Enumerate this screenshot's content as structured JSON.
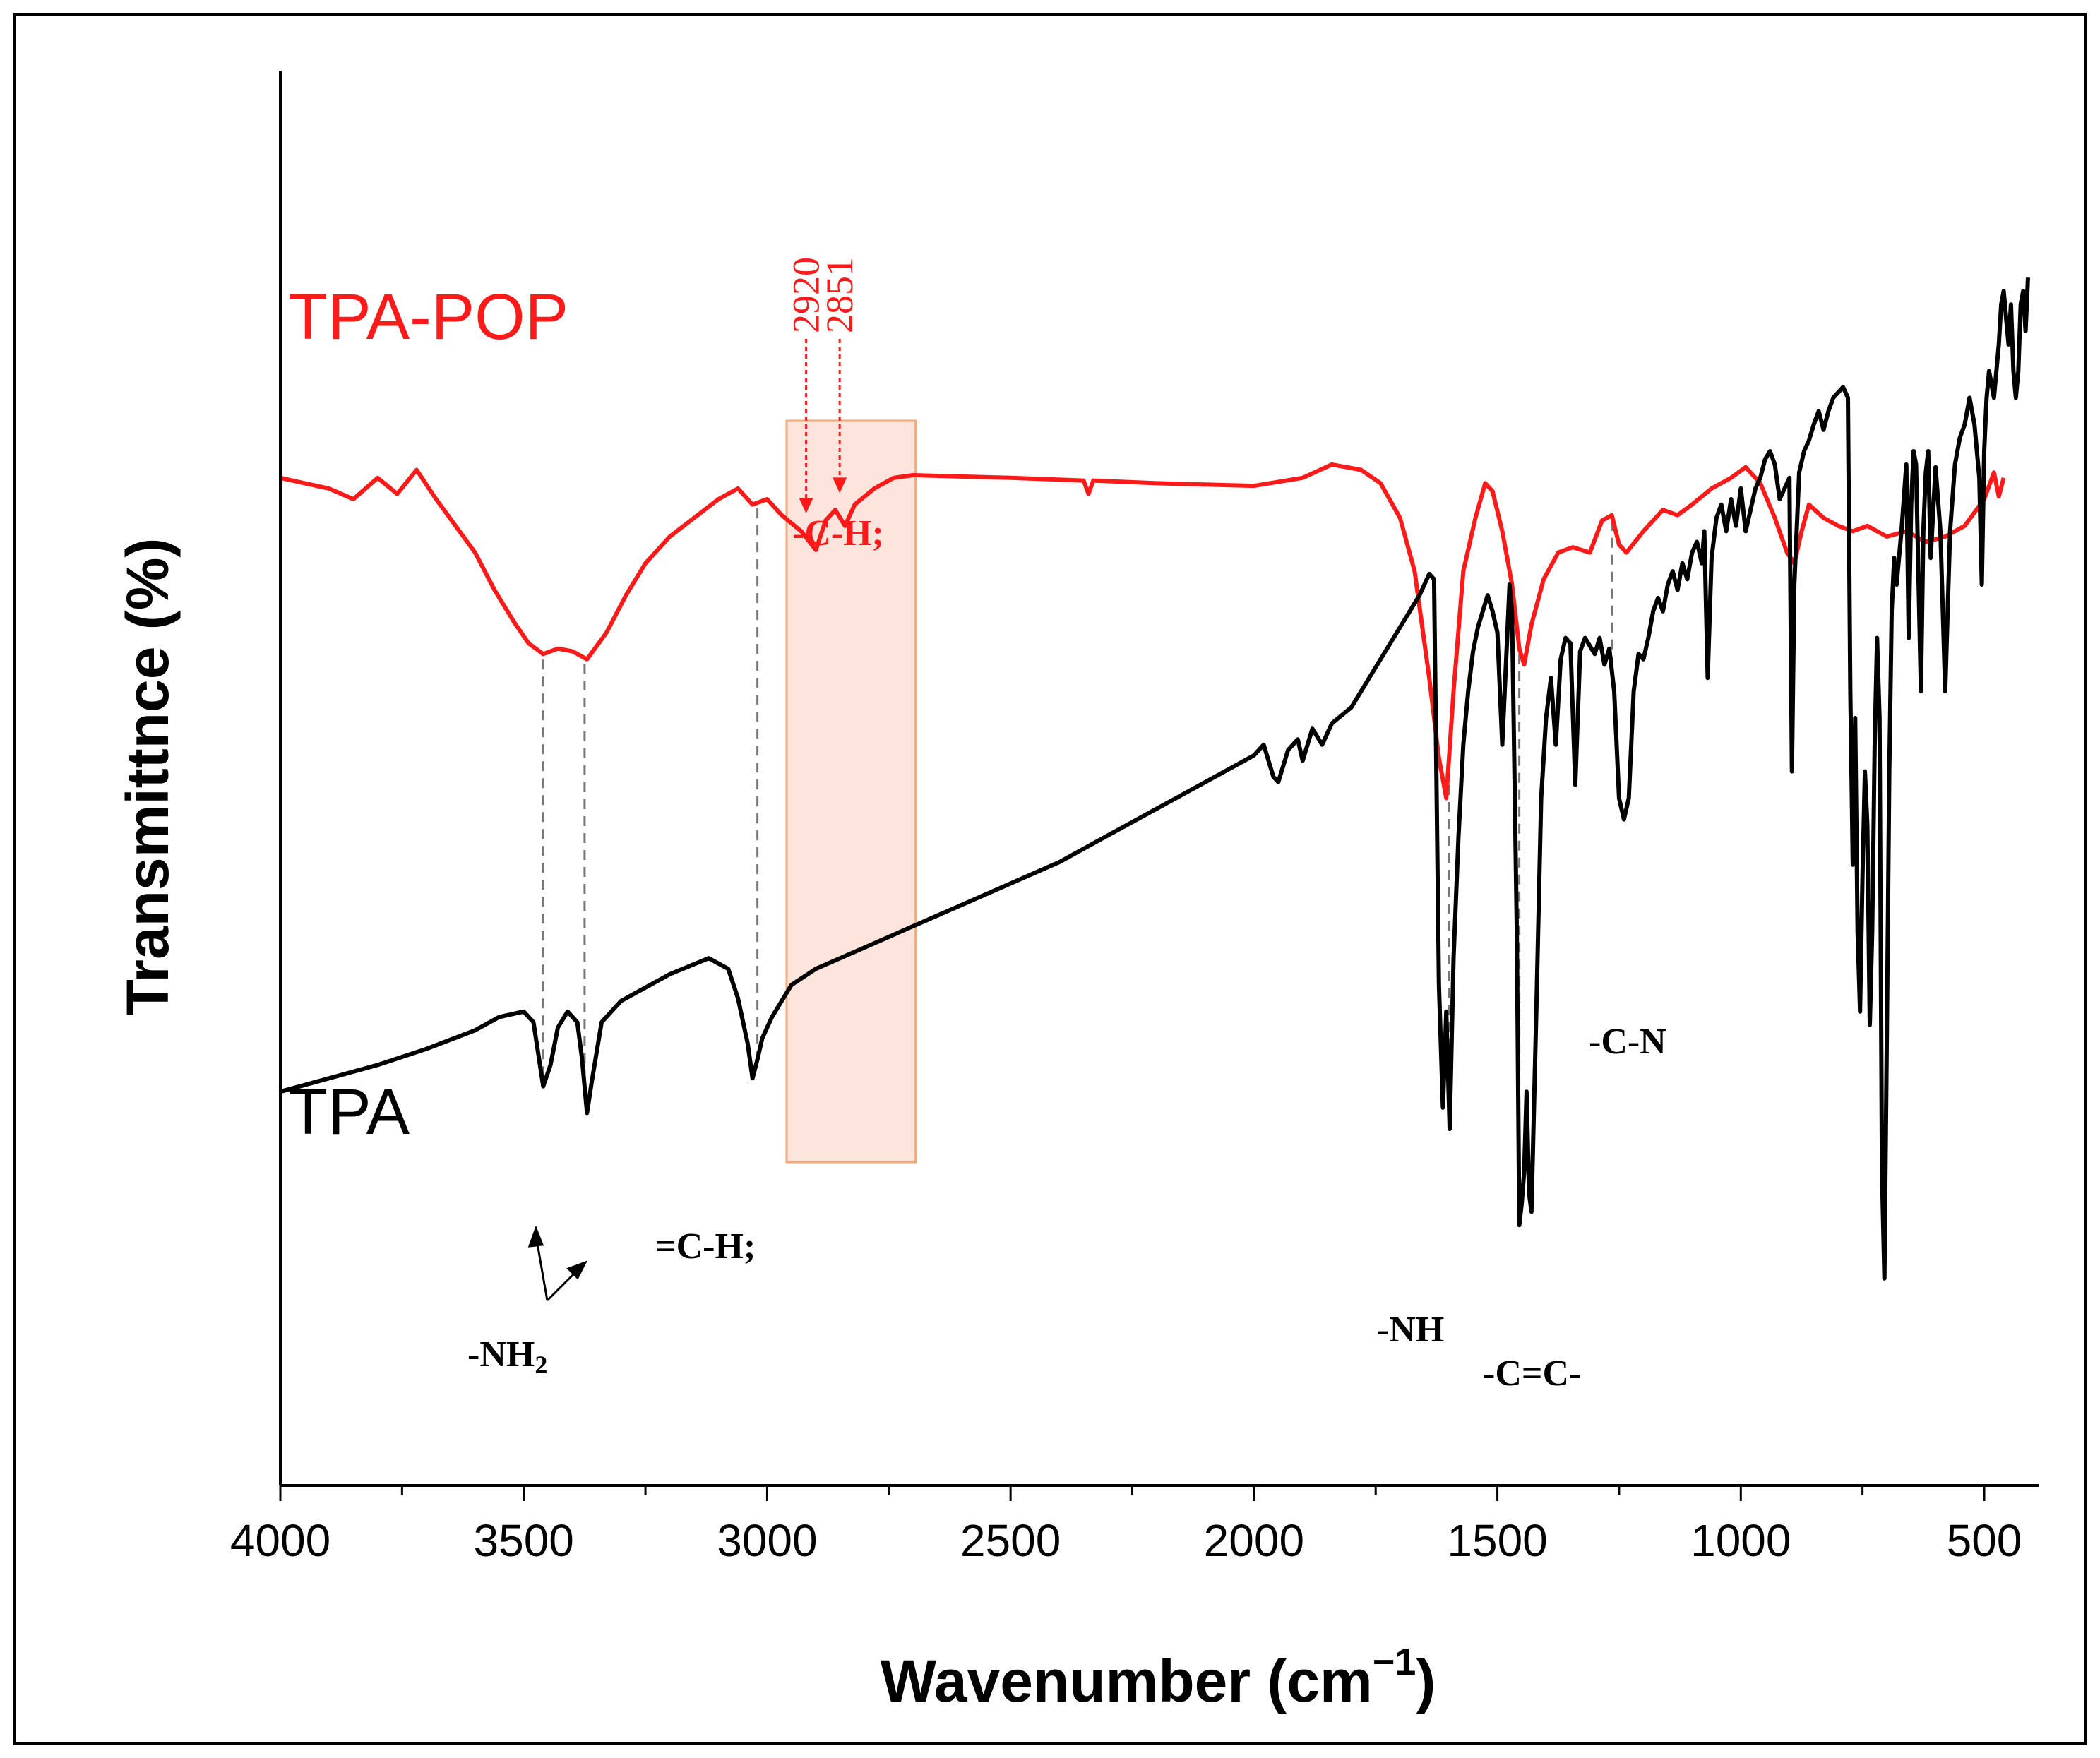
{
  "chart_data": {
    "type": "line",
    "title": "",
    "xlabel": "Wavenumber (cm",
    "xlabel_sup": "−1",
    "xlabel_close": ")",
    "ylabel": "Transmittnce (%)",
    "xlim": [
      4000,
      400
    ],
    "x_reversed": true,
    "y_ticks_shown": false,
    "xticks": [
      4000,
      3500,
      3000,
      2500,
      2000,
      1500,
      1000,
      500
    ],
    "colors": {
      "tpa_pop": "#ff1a1a",
      "tpa": "#000000",
      "highlight_fill": "#fde4dc",
      "highlight_stroke": "#f4a877",
      "guide": "#777777"
    },
    "series": [
      {
        "name": "TPA-POP",
        "label": "TPA-POP",
        "color": "#ff1a1a",
        "points": [
          [
            4000,
            2.9
          ],
          [
            3950,
            2.88
          ],
          [
            3900,
            2.86
          ],
          [
            3850,
            2.82
          ],
          [
            3800,
            2.9
          ],
          [
            3760,
            2.84
          ],
          [
            3720,
            2.93
          ],
          [
            3680,
            2.82
          ],
          [
            3640,
            2.72
          ],
          [
            3600,
            2.62
          ],
          [
            3560,
            2.48
          ],
          [
            3520,
            2.36
          ],
          [
            3490,
            2.28
          ],
          [
            3460,
            2.24
          ],
          [
            3430,
            2.26
          ],
          [
            3400,
            2.25
          ],
          [
            3370,
            2.22
          ],
          [
            3330,
            2.32
          ],
          [
            3290,
            2.46
          ],
          [
            3250,
            2.58
          ],
          [
            3200,
            2.68
          ],
          [
            3150,
            2.75
          ],
          [
            3100,
            2.82
          ],
          [
            3060,
            2.86
          ],
          [
            3030,
            2.8
          ],
          [
            3000,
            2.82
          ],
          [
            2970,
            2.76
          ],
          [
            2930,
            2.7
          ],
          [
            2900,
            2.63
          ],
          [
            2880,
            2.74
          ],
          [
            2860,
            2.78
          ],
          [
            2840,
            2.72
          ],
          [
            2820,
            2.8
          ],
          [
            2780,
            2.86
          ],
          [
            2740,
            2.9
          ],
          [
            2700,
            2.91
          ],
          [
            2500,
            2.9
          ],
          [
            2350,
            2.89
          ],
          [
            2340,
            2.84
          ],
          [
            2330,
            2.89
          ],
          [
            2200,
            2.88
          ],
          [
            2000,
            2.87
          ],
          [
            1900,
            2.9
          ],
          [
            1840,
            2.95
          ],
          [
            1780,
            2.93
          ],
          [
            1740,
            2.88
          ],
          [
            1700,
            2.75
          ],
          [
            1670,
            2.55
          ],
          [
            1640,
            2.15
          ],
          [
            1620,
            1.85
          ],
          [
            1605,
            1.7
          ],
          [
            1590,
            2.1
          ],
          [
            1570,
            2.55
          ],
          [
            1545,
            2.75
          ],
          [
            1525,
            2.88
          ],
          [
            1510,
            2.85
          ],
          [
            1490,
            2.7
          ],
          [
            1470,
            2.5
          ],
          [
            1455,
            2.26
          ],
          [
            1445,
            2.2
          ],
          [
            1430,
            2.35
          ],
          [
            1405,
            2.52
          ],
          [
            1375,
            2.62
          ],
          [
            1345,
            2.64
          ],
          [
            1310,
            2.62
          ],
          [
            1285,
            2.74
          ],
          [
            1265,
            2.76
          ],
          [
            1250,
            2.65
          ],
          [
            1235,
            2.62
          ],
          [
            1200,
            2.7
          ],
          [
            1160,
            2.78
          ],
          [
            1130,
            2.76
          ],
          [
            1100,
            2.8
          ],
          [
            1060,
            2.86
          ],
          [
            1020,
            2.9
          ],
          [
            990,
            2.94
          ],
          [
            960,
            2.88
          ],
          [
            930,
            2.75
          ],
          [
            905,
            2.62
          ],
          [
            890,
            2.58
          ],
          [
            875,
            2.7
          ],
          [
            860,
            2.8
          ],
          [
            830,
            2.75
          ],
          [
            800,
            2.72
          ],
          [
            770,
            2.7
          ],
          [
            740,
            2.72
          ],
          [
            700,
            2.68
          ],
          [
            660,
            2.7
          ],
          [
            620,
            2.66
          ],
          [
            580,
            2.68
          ],
          [
            540,
            2.72
          ],
          [
            500,
            2.82
          ],
          [
            480,
            2.92
          ],
          [
            470,
            2.83
          ],
          [
            460,
            2.9
          ]
        ]
      },
      {
        "name": "TPA",
        "label": "TPA",
        "color": "#000000",
        "points": [
          [
            4000,
            0.6
          ],
          [
            3900,
            0.65
          ],
          [
            3800,
            0.7
          ],
          [
            3700,
            0.76
          ],
          [
            3600,
            0.83
          ],
          [
            3550,
            0.88
          ],
          [
            3500,
            0.9
          ],
          [
            3480,
            0.86
          ],
          [
            3460,
            0.62
          ],
          [
            3445,
            0.7
          ],
          [
            3430,
            0.84
          ],
          [
            3410,
            0.9
          ],
          [
            3390,
            0.86
          ],
          [
            3380,
            0.72
          ],
          [
            3370,
            0.52
          ],
          [
            3360,
            0.64
          ],
          [
            3340,
            0.86
          ],
          [
            3300,
            0.94
          ],
          [
            3200,
            1.04
          ],
          [
            3120,
            1.1
          ],
          [
            3080,
            1.06
          ],
          [
            3060,
            0.95
          ],
          [
            3040,
            0.78
          ],
          [
            3030,
            0.65
          ],
          [
            3020,
            0.72
          ],
          [
            3010,
            0.8
          ],
          [
            2990,
            0.88
          ],
          [
            2950,
            1.0
          ],
          [
            2900,
            1.06
          ],
          [
            2800,
            1.14
          ],
          [
            2700,
            1.22
          ],
          [
            2600,
            1.3
          ],
          [
            2500,
            1.38
          ],
          [
            2400,
            1.46
          ],
          [
            2300,
            1.56
          ],
          [
            2200,
            1.66
          ],
          [
            2100,
            1.76
          ],
          [
            2000,
            1.86
          ],
          [
            1980,
            1.9
          ],
          [
            1960,
            1.78
          ],
          [
            1950,
            1.76
          ],
          [
            1930,
            1.88
          ],
          [
            1910,
            1.92
          ],
          [
            1900,
            1.84
          ],
          [
            1880,
            1.96
          ],
          [
            1860,
            1.9
          ],
          [
            1840,
            1.98
          ],
          [
            1800,
            2.04
          ],
          [
            1760,
            2.16
          ],
          [
            1720,
            2.28
          ],
          [
            1680,
            2.4
          ],
          [
            1660,
            2.46
          ],
          [
            1640,
            2.54
          ],
          [
            1630,
            2.52
          ],
          [
            1620,
            1.0
          ],
          [
            1612,
            0.54
          ],
          [
            1605,
            0.9
          ],
          [
            1598,
            0.46
          ],
          [
            1590,
            1.1
          ],
          [
            1580,
            1.55
          ],
          [
            1570,
            1.9
          ],
          [
            1560,
            2.1
          ],
          [
            1550,
            2.25
          ],
          [
            1540,
            2.34
          ],
          [
            1530,
            2.4
          ],
          [
            1520,
            2.46
          ],
          [
            1510,
            2.4
          ],
          [
            1500,
            2.32
          ],
          [
            1490,
            1.9
          ],
          [
            1480,
            2.3
          ],
          [
            1475,
            2.5
          ],
          [
            1470,
            2.4
          ],
          [
            1465,
            1.8
          ],
          [
            1460,
            1.2
          ],
          [
            1455,
            0.1
          ],
          [
            1450,
            0.18
          ],
          [
            1445,
            0.3
          ],
          [
            1440,
            0.6
          ],
          [
            1435,
            0.22
          ],
          [
            1430,
            0.15
          ],
          [
            1420,
            0.9
          ],
          [
            1410,
            1.7
          ],
          [
            1400,
            2.0
          ],
          [
            1390,
            2.15
          ],
          [
            1380,
            1.9
          ],
          [
            1370,
            2.22
          ],
          [
            1360,
            2.3
          ],
          [
            1350,
            2.28
          ],
          [
            1340,
            1.75
          ],
          [
            1330,
            2.25
          ],
          [
            1320,
            2.3
          ],
          [
            1300,
            2.24
          ],
          [
            1290,
            2.3
          ],
          [
            1280,
            2.2
          ],
          [
            1270,
            2.26
          ],
          [
            1260,
            2.1
          ],
          [
            1250,
            1.7
          ],
          [
            1240,
            1.62
          ],
          [
            1230,
            1.7
          ],
          [
            1220,
            2.1
          ],
          [
            1210,
            2.24
          ],
          [
            1200,
            2.22
          ],
          [
            1190,
            2.3
          ],
          [
            1180,
            2.4
          ],
          [
            1170,
            2.45
          ],
          [
            1160,
            2.4
          ],
          [
            1150,
            2.5
          ],
          [
            1140,
            2.55
          ],
          [
            1130,
            2.48
          ],
          [
            1120,
            2.58
          ],
          [
            1110,
            2.52
          ],
          [
            1100,
            2.62
          ],
          [
            1090,
            2.66
          ],
          [
            1080,
            2.58
          ],
          [
            1075,
            2.7
          ],
          [
            1068,
            2.15
          ],
          [
            1060,
            2.6
          ],
          [
            1050,
            2.75
          ],
          [
            1040,
            2.8
          ],
          [
            1030,
            2.7
          ],
          [
            1020,
            2.82
          ],
          [
            1010,
            2.72
          ],
          [
            1000,
            2.86
          ],
          [
            990,
            2.7
          ],
          [
            980,
            2.78
          ],
          [
            970,
            2.86
          ],
          [
            960,
            2.9
          ],
          [
            950,
            2.97
          ],
          [
            940,
            3.0
          ],
          [
            930,
            2.95
          ],
          [
            920,
            2.82
          ],
          [
            910,
            2.86
          ],
          [
            900,
            2.9
          ],
          [
            895,
            1.8
          ],
          [
            890,
            2.5
          ],
          [
            880,
            2.92
          ],
          [
            870,
            3.0
          ],
          [
            860,
            3.04
          ],
          [
            850,
            3.1
          ],
          [
            840,
            3.15
          ],
          [
            830,
            3.08
          ],
          [
            820,
            3.15
          ],
          [
            810,
            3.2
          ],
          [
            800,
            3.22
          ],
          [
            790,
            3.24
          ],
          [
            780,
            3.2
          ],
          [
            775,
            2.1
          ],
          [
            770,
            1.45
          ],
          [
            765,
            2.0
          ],
          [
            760,
            1.2
          ],
          [
            755,
            0.9
          ],
          [
            750,
            1.4
          ],
          [
            745,
            1.8
          ],
          [
            740,
            1.6
          ],
          [
            735,
            0.85
          ],
          [
            730,
            1.2
          ],
          [
            725,
            1.9
          ],
          [
            720,
            2.3
          ],
          [
            715,
            2.0
          ],
          [
            710,
            0.3
          ],
          [
            705,
            -0.1
          ],
          [
            700,
            0.8
          ],
          [
            695,
            1.8
          ],
          [
            690,
            2.4
          ],
          [
            685,
            2.6
          ],
          [
            680,
            2.5
          ],
          [
            670,
            2.7
          ],
          [
            660,
            2.95
          ],
          [
            655,
            2.3
          ],
          [
            650,
            2.8
          ],
          [
            645,
            3.0
          ],
          [
            640,
            2.95
          ],
          [
            630,
            2.1
          ],
          [
            625,
            2.7
          ],
          [
            620,
            2.92
          ],
          [
            615,
            3.0
          ],
          [
            610,
            2.6
          ],
          [
            600,
            2.94
          ],
          [
            590,
            2.7
          ],
          [
            580,
            2.1
          ],
          [
            570,
            2.7
          ],
          [
            560,
            2.95
          ],
          [
            550,
            3.05
          ],
          [
            540,
            3.1
          ],
          [
            530,
            3.2
          ],
          [
            520,
            3.1
          ],
          [
            510,
            2.9
          ],
          [
            505,
            2.5
          ],
          [
            500,
            3.0
          ],
          [
            495,
            3.2
          ],
          [
            490,
            3.3
          ],
          [
            480,
            3.2
          ],
          [
            470,
            3.4
          ],
          [
            465,
            3.55
          ],
          [
            460,
            3.6
          ],
          [
            455,
            3.5
          ],
          [
            450,
            3.4
          ],
          [
            445,
            3.55
          ],
          [
            440,
            3.3
          ],
          [
            435,
            3.2
          ],
          [
            430,
            3.3
          ],
          [
            425,
            3.55
          ],
          [
            420,
            3.6
          ],
          [
            415,
            3.45
          ],
          [
            410,
            3.65
          ]
        ]
      }
    ],
    "guides": [
      {
        "x": 3460,
        "from": "TPA-POP",
        "to": "TPA"
      },
      {
        "x": 3375,
        "from": "TPA-POP",
        "to": "TPA"
      },
      {
        "x": 3020,
        "from": "TPA-POP",
        "to": "TPA"
      },
      {
        "x": 1600,
        "from": "TPA-POP",
        "to": "TPA"
      },
      {
        "x": 1455,
        "from": "TPA-POP",
        "to": "TPA"
      },
      {
        "x": 1265,
        "from": "TPA-POP",
        "to": "TPA"
      }
    ],
    "highlight_region": [
      2960,
      2695
    ],
    "marker_arrows": [
      {
        "x": 2920,
        "label": "2920"
      },
      {
        "x": 2851,
        "label": "2851"
      }
    ],
    "annotations": {
      "nh2_prefix": "-NH",
      "nh2_sub": "2",
      "ch_aromatic": "=C-H;",
      "ch_aliphatic": "-C-H;",
      "nh": "-NH",
      "cc": "-C=C-",
      "cn": "-C-N"
    }
  }
}
